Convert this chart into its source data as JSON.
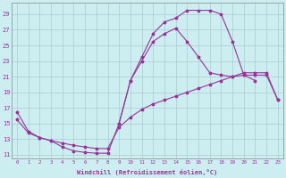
{
  "xlabel": "Windchill (Refroidissement éolien,°C)",
  "background_color": "#cceef0",
  "line_color": "#993399",
  "grid_color": "#aacccc",
  "xlim": [
    -0.5,
    23.5
  ],
  "ylim": [
    10.5,
    30.5
  ],
  "xticks": [
    0,
    1,
    2,
    3,
    4,
    5,
    6,
    7,
    8,
    9,
    10,
    11,
    12,
    13,
    14,
    15,
    16,
    17,
    18,
    19,
    20,
    21,
    22,
    23
  ],
  "yticks": [
    11,
    13,
    15,
    17,
    19,
    21,
    23,
    25,
    27,
    29
  ],
  "curve1_x": [
    0,
    1,
    2,
    3,
    4,
    5,
    6,
    7,
    8,
    9,
    10,
    11,
    12,
    13,
    14,
    15,
    16,
    17,
    18,
    19,
    20,
    21
  ],
  "curve1_y": [
    16.5,
    14.0,
    13.2,
    12.8,
    12.0,
    11.5,
    11.3,
    11.2,
    11.2,
    15.0,
    20.5,
    23.5,
    26.5,
    28.0,
    28.5,
    29.5,
    29.5,
    29.5,
    29.0,
    25.5,
    21.2,
    20.5
  ],
  "curve2_x": [
    0,
    1,
    2,
    3,
    4,
    5,
    6,
    7,
    8,
    9,
    10,
    11,
    12,
    13,
    14,
    15,
    16,
    17,
    18,
    19,
    20,
    21,
    22,
    23
  ],
  "curve2_y": [
    15.5,
    13.8,
    13.2,
    12.8,
    12.5,
    12.2,
    12.0,
    11.8,
    11.8,
    14.5,
    15.8,
    16.8,
    17.5,
    18.0,
    18.5,
    19.0,
    19.5,
    20.0,
    20.5,
    21.0,
    21.5,
    21.5,
    21.5,
    18.0
  ],
  "curve3_x": [
    9,
    10,
    11,
    12,
    13,
    14,
    15,
    16,
    17,
    18,
    19,
    20,
    21,
    22,
    23
  ],
  "curve3_y": [
    15.0,
    20.5,
    23.0,
    25.5,
    26.5,
    27.2,
    25.5,
    23.5,
    21.5,
    21.2,
    21.0,
    21.2,
    21.2,
    21.2,
    18.0
  ]
}
